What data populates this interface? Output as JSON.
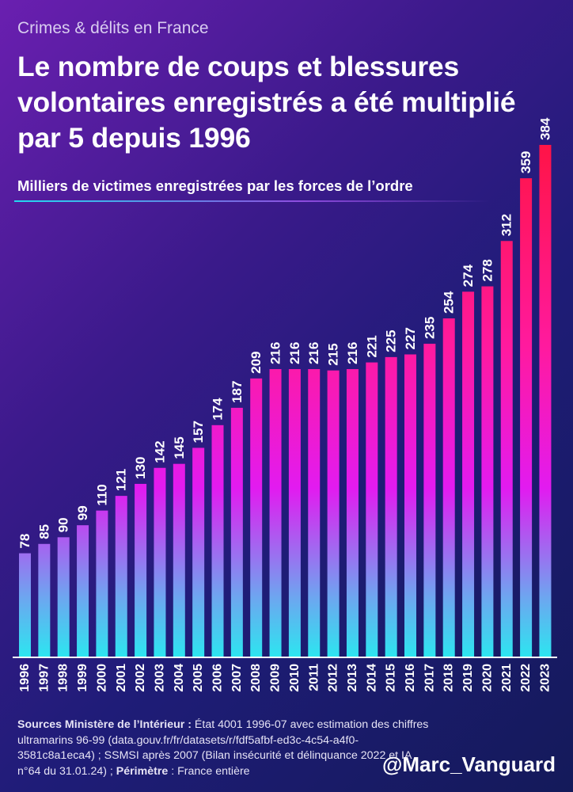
{
  "header": {
    "kicker": "Crimes & délits en France",
    "title": "Le nombre de coups et blessures volontaires enregistrés a été multiplié par 5 depuis 1996",
    "subtitle": "Milliers de victimes enregistrées par les forces de l’ordre"
  },
  "chart_data": {
    "type": "bar",
    "categories": [
      "1996",
      "1997",
      "1998",
      "1999",
      "2000",
      "2001",
      "2002",
      "2003",
      "2004",
      "2005",
      "2006",
      "2007",
      "2008",
      "2009",
      "2010",
      "2011",
      "2012",
      "2013",
      "2014",
      "2015",
      "2016",
      "2017",
      "2018",
      "2019",
      "2020",
      "2021",
      "2022",
      "2023"
    ],
    "values": [
      78,
      85,
      90,
      99,
      110,
      121,
      130,
      142,
      145,
      157,
      174,
      187,
      209,
      216,
      216,
      216,
      215,
      216,
      221,
      225,
      227,
      235,
      254,
      274,
      278,
      312,
      359,
      384
    ],
    "title": "Le nombre de coups et blessures volontaires enregistrés a été multiplié par 5 depuis 1996",
    "ylabel": "Milliers de victimes enregistrées par les forces de l’ordre",
    "data_labels": true,
    "grid": false,
    "colors": {
      "bar_bottom": "#2ce6f0",
      "bar_mid": "#e21bf0",
      "bar_top": "#ff1447",
      "baseline": "#ffffff"
    }
  },
  "footer": {
    "sources_label": "Sources Ministère de l’Intérieur :",
    "sources_text": " État 4001 1996-07 avec estimation des chiffres ultramarins 96-99 (data.gouv.fr/fr/datasets/r/fdf5afbf-ed3c-4c54-a4f0-3581c8a1eca4) ; SSMSI après 2007 (Bilan insécurité et délinquance 2022 et IA n°64 du 31.01.24) ;",
    "perimeter_label": "Périmètre",
    "perimeter_text": " : France entière",
    "handle": "@Marc_Vanguard"
  }
}
